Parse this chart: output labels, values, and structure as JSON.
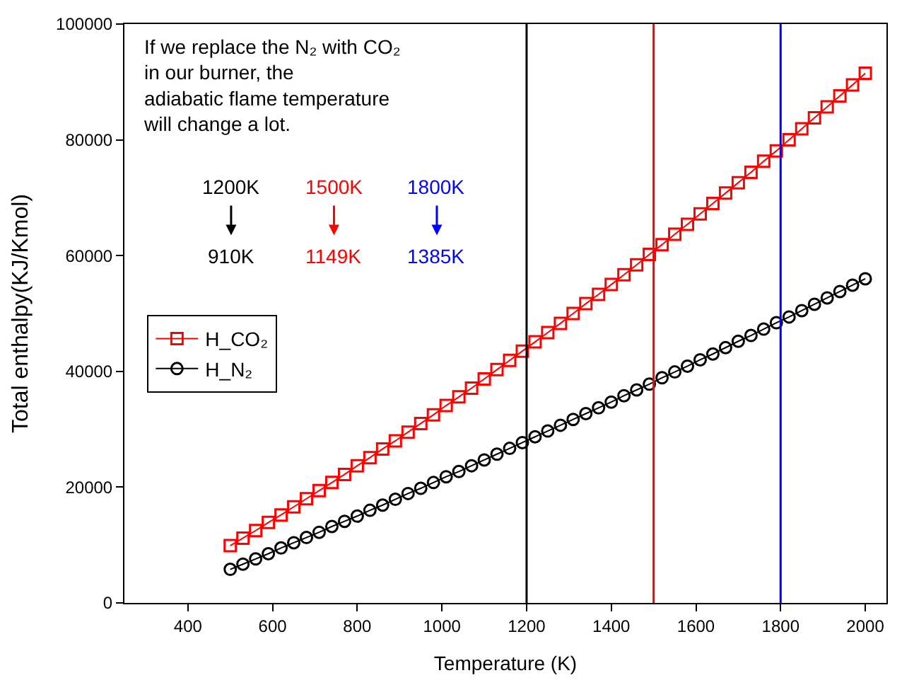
{
  "chart_data": {
    "type": "line",
    "xlabel": "Temperature (K)",
    "ylabel": "Total enthalpy(KJ/Kmol)",
    "x": [
      500,
      530,
      560,
      590,
      620,
      650,
      680,
      710,
      740,
      770,
      800,
      830,
      860,
      890,
      920,
      950,
      980,
      1010,
      1040,
      1070,
      1100,
      1130,
      1160,
      1190,
      1220,
      1250,
      1280,
      1310,
      1340,
      1370,
      1400,
      1430,
      1460,
      1490,
      1520,
      1550,
      1580,
      1610,
      1640,
      1670,
      1700,
      1730,
      1760,
      1790,
      1820,
      1850,
      1880,
      1910,
      1940,
      1970,
      2000
    ],
    "series": [
      {
        "name": "H_CO₂",
        "color": "#ff0000",
        "marker": "square",
        "values": [
          9900,
          11200,
          12500,
          13900,
          15200,
          16600,
          18000,
          19400,
          20800,
          22200,
          23700,
          25100,
          26600,
          28000,
          29500,
          31000,
          32500,
          34100,
          35600,
          37100,
          38700,
          40300,
          41900,
          43500,
          45100,
          46700,
          48300,
          50000,
          51700,
          53300,
          55000,
          56700,
          58400,
          60200,
          61900,
          63700,
          65400,
          67200,
          69000,
          70800,
          72600,
          74400,
          76300,
          78100,
          80000,
          81900,
          83800,
          85700,
          87600,
          89500,
          91500
        ]
      },
      {
        "name": "H_N₂",
        "color": "#000000",
        "marker": "circle",
        "values": [
          5800,
          6700,
          7600,
          8500,
          9500,
          10400,
          11300,
          12200,
          13200,
          14100,
          15000,
          16000,
          16900,
          17900,
          18900,
          19800,
          20800,
          21800,
          22700,
          23700,
          24700,
          25700,
          26700,
          27700,
          28700,
          29700,
          30700,
          31700,
          32700,
          33700,
          34700,
          35800,
          36800,
          37800,
          38900,
          39900,
          40900,
          42000,
          43000,
          44100,
          45200,
          46200,
          47300,
          48400,
          49400,
          50500,
          51600,
          52700,
          53800,
          54900,
          56000
        ]
      }
    ],
    "xlim": [
      250,
      2050
    ],
    "xticks": [
      400,
      600,
      800,
      1000,
      1200,
      1400,
      1600,
      1800,
      2000
    ],
    "ylim": [
      0,
      100000
    ],
    "yticks": [
      0,
      20000,
      40000,
      60000,
      80000,
      100000
    ],
    "ref_lines": [
      {
        "axis": "x",
        "value": 1200,
        "color": "#000000"
      },
      {
        "axis": "x",
        "value": 1500,
        "color": "#ff0000"
      },
      {
        "axis": "x",
        "value": 1800,
        "color": "#0000ff"
      }
    ],
    "annotations": [
      "If we replace the N₂ with CO₂\nin our burner, the\nadiabatic flame temperature\nwill change a lot.",
      "1200K",
      "910K",
      "1500K",
      "1149K",
      "1800K",
      "1385K"
    ],
    "legend": "left",
    "line_style": "solid"
  }
}
